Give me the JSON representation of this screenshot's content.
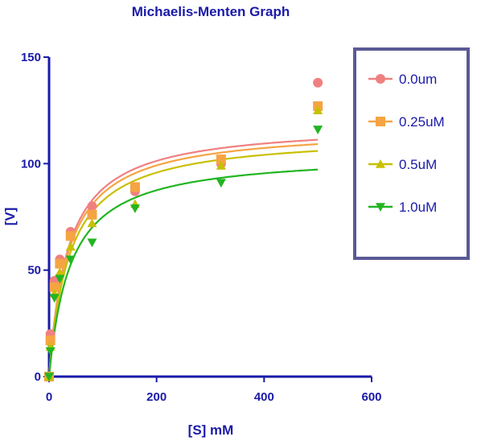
{
  "chart_data": {
    "type": "scatter",
    "title": "Michaelis-Menten Graph",
    "xlabel": "[S] mM",
    "ylabel": "[V]",
    "xlim": [
      0,
      600
    ],
    "ylim": [
      0,
      150
    ],
    "xticks": [
      0,
      200,
      400,
      600
    ],
    "yticks": [
      0,
      50,
      100,
      150
    ],
    "grid": false,
    "legend_position": "right",
    "series": [
      {
        "name": "0.0um",
        "color": "#f08080",
        "marker": "circle",
        "points": [
          [
            0,
            0
          ],
          [
            2.5,
            20
          ],
          [
            10,
            45
          ],
          [
            20,
            55
          ],
          [
            40,
            68
          ],
          [
            80,
            80
          ],
          [
            160,
            87
          ],
          [
            320,
            100
          ],
          [
            500,
            138
          ]
        ],
        "fit": {
          "vmax": 119,
          "km": 35
        }
      },
      {
        "name": "0.25uM",
        "color": "#f5a443",
        "marker": "square",
        "points": [
          [
            0,
            0
          ],
          [
            2.5,
            17
          ],
          [
            10,
            42
          ],
          [
            20,
            53
          ],
          [
            40,
            66
          ],
          [
            80,
            76
          ],
          [
            160,
            89
          ],
          [
            320,
            102
          ],
          [
            500,
            127
          ]
        ],
        "fit": {
          "vmax": 117,
          "km": 36
        }
      },
      {
        "name": "0.5uM",
        "color": "#c8c000",
        "marker": "triangle-up",
        "points": [
          [
            0,
            0
          ],
          [
            2.5,
            14
          ],
          [
            10,
            39
          ],
          [
            20,
            49
          ],
          [
            40,
            61
          ],
          [
            80,
            72
          ],
          [
            160,
            81
          ],
          [
            320,
            99
          ],
          [
            500,
            125
          ]
        ],
        "fit": {
          "vmax": 114,
          "km": 38
        }
      },
      {
        "name": "1.0uM",
        "color": "#22b522",
        "marker": "triangle-down",
        "points": [
          [
            0,
            0
          ],
          [
            2.5,
            12
          ],
          [
            10,
            37
          ],
          [
            20,
            46
          ],
          [
            40,
            55
          ],
          [
            80,
            63
          ],
          [
            160,
            79
          ],
          [
            320,
            91
          ],
          [
            500,
            116
          ]
        ],
        "fit": {
          "vmax": 105,
          "km": 40
        }
      }
    ]
  }
}
